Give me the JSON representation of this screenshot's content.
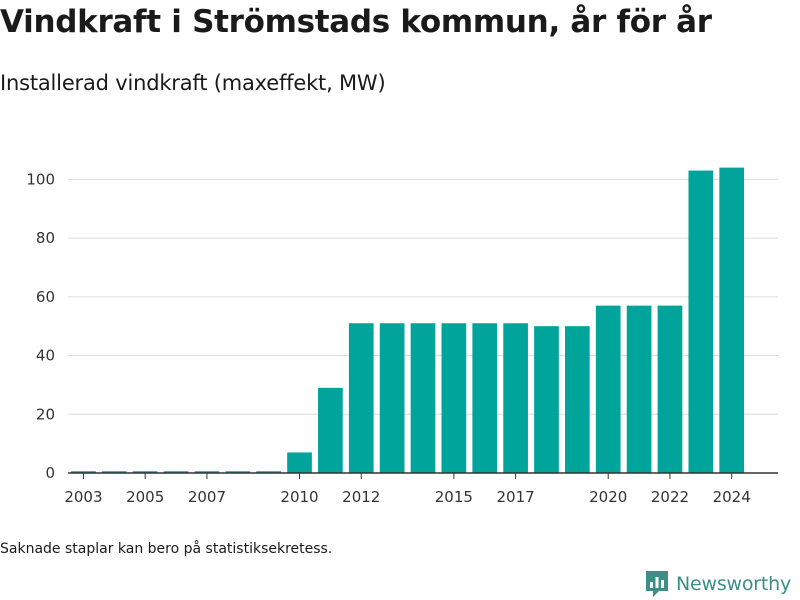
{
  "header": {
    "title": "Vindkraft i Strömstads kommun, år för år",
    "subtitle": "Installerad vindkraft (maxeffekt, MW)"
  },
  "footer": {
    "note": "Saknade staplar kan bero på statistiksekretess.",
    "brand_name": "Newsworthy",
    "brand_icon": "newsworthy-logo-icon"
  },
  "colors": {
    "bar": "#00a49a",
    "grid": "#dcdcdc",
    "axis": "#333333",
    "brand": "#3a8f86"
  },
  "chart_data": {
    "type": "bar",
    "title": "Vindkraft i Strömstads kommun, år för år",
    "subtitle": "Installerad vindkraft (maxeffekt, MW)",
    "xlabel": "",
    "ylabel": "",
    "x": [
      2003,
      2004,
      2005,
      2006,
      2007,
      2008,
      2009,
      2010,
      2011,
      2012,
      2013,
      2014,
      2015,
      2016,
      2017,
      2018,
      2019,
      2020,
      2021,
      2022,
      2023,
      2024
    ],
    "values": [
      0.6,
      0.6,
      0.6,
      0.6,
      0.6,
      0.6,
      0.6,
      7,
      29,
      51,
      51,
      51,
      51,
      51,
      51,
      50,
      50,
      57,
      57,
      57,
      103,
      104
    ],
    "xticks": [
      "2003",
      "2005",
      "2007",
      "2010",
      "2012",
      "2015",
      "2017",
      "2020",
      "2022",
      "2024"
    ],
    "yticks": [
      0,
      20,
      40,
      60,
      80,
      100
    ],
    "ylim": [
      0,
      110
    ],
    "grid": true,
    "legend": "none"
  }
}
